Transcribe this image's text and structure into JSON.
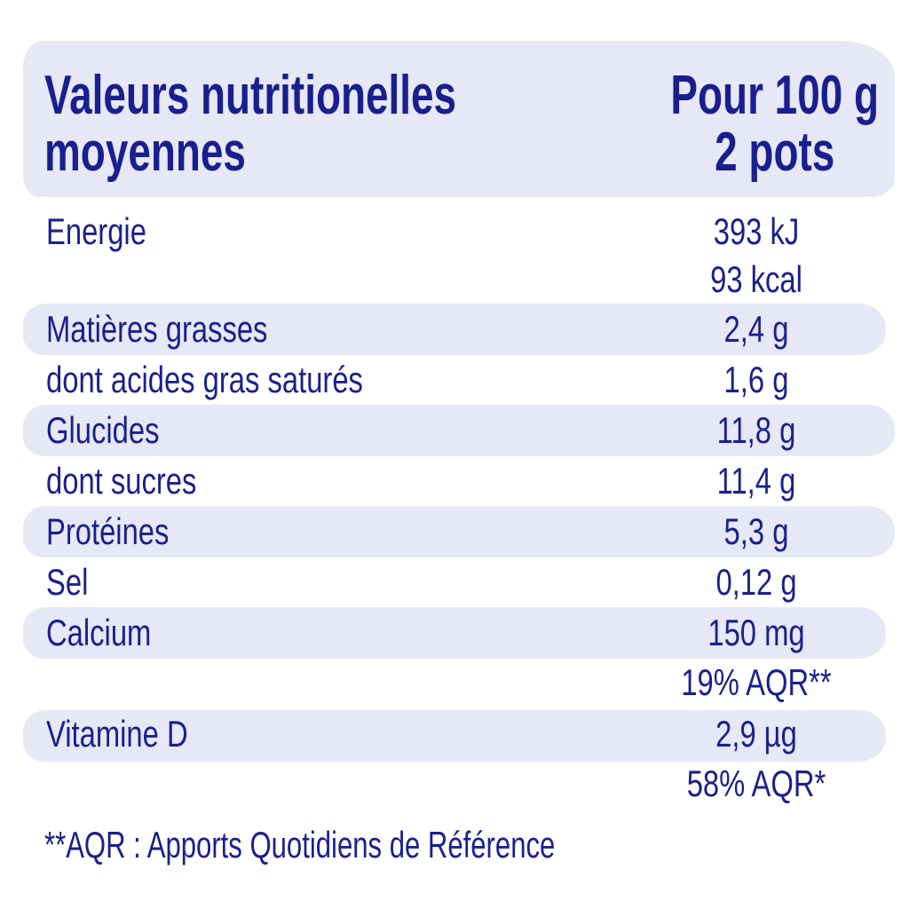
{
  "header": {
    "title_line1": "Valeurs nutritionelles",
    "title_line2": "moyennes",
    "portion_line1": "Pour 100 g",
    "portion_line2": "2 pots"
  },
  "rows": [
    {
      "label": "Energie",
      "value": "393 kJ",
      "value2": "93 kcal"
    },
    {
      "label": "Matières grasses",
      "value": "2,4 g"
    },
    {
      "label": "dont acides gras saturés",
      "value": "1,6 g"
    },
    {
      "label": "Glucides",
      "value": "11,8 g"
    },
    {
      "label": "dont sucres",
      "value": "11,4 g"
    },
    {
      "label": "Protéines",
      "value": "5,3 g"
    },
    {
      "label": "Sel",
      "value": "0,12 g"
    },
    {
      "label": "Calcium",
      "value": "150 mg",
      "value2": "19% AQR**"
    },
    {
      "label": "Vitamine D",
      "value": "2,9 µg",
      "value2": "58% AQR*"
    }
  ],
  "footnote": "**AQR : Apports Quotidiens de Référence",
  "colors": {
    "text": "#1a1f8f",
    "band": "#e6e8f5"
  }
}
